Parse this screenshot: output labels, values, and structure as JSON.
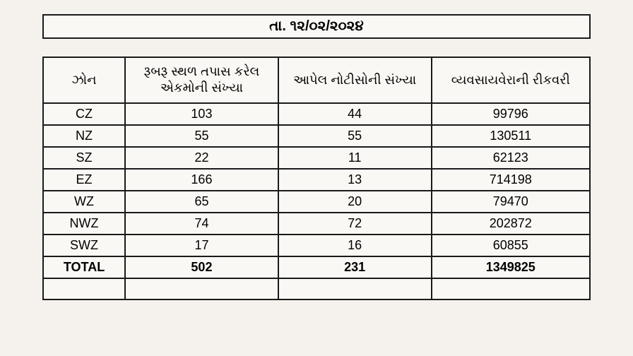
{
  "date_header": "તા. ૧૨/૦૨/૨૦૨૪",
  "table": {
    "columns": [
      {
        "key": "zone",
        "label": "ઝોન"
      },
      {
        "key": "inspect",
        "label": "રૂબરૂ સ્થળ તપાસ કરેલ એકમોની સંખ્યા"
      },
      {
        "key": "notice",
        "label": "આપેલ નોટીસોની સંખ્યા"
      },
      {
        "key": "recovery",
        "label": "વ્યવસાયવેરાની રીકવરી"
      }
    ],
    "rows": [
      {
        "zone": "CZ",
        "inspect": "103",
        "notice": "44",
        "recovery": "99796"
      },
      {
        "zone": "NZ",
        "inspect": "55",
        "notice": "55",
        "recovery": "130511"
      },
      {
        "zone": "SZ",
        "inspect": "22",
        "notice": "11",
        "recovery": "62123"
      },
      {
        "zone": "EZ",
        "inspect": "166",
        "notice": "13",
        "recovery": "714198"
      },
      {
        "zone": "WZ",
        "inspect": "65",
        "notice": "20",
        "recovery": "79470"
      },
      {
        "zone": "NWZ",
        "inspect": "74",
        "notice": "72",
        "recovery": "202872"
      },
      {
        "zone": "SWZ",
        "inspect": "17",
        "notice": "16",
        "recovery": "60855"
      }
    ],
    "total": {
      "zone": "TOTAL",
      "inspect": "502",
      "notice": "231",
      "recovery": "1349825"
    }
  },
  "style": {
    "background_color": "#f5f2ed",
    "cell_background": "#faf8f4",
    "border_color": "#1a1a1a",
    "header_fontsize": 18,
    "cell_fontsize": 18,
    "date_fontsize": 20
  }
}
